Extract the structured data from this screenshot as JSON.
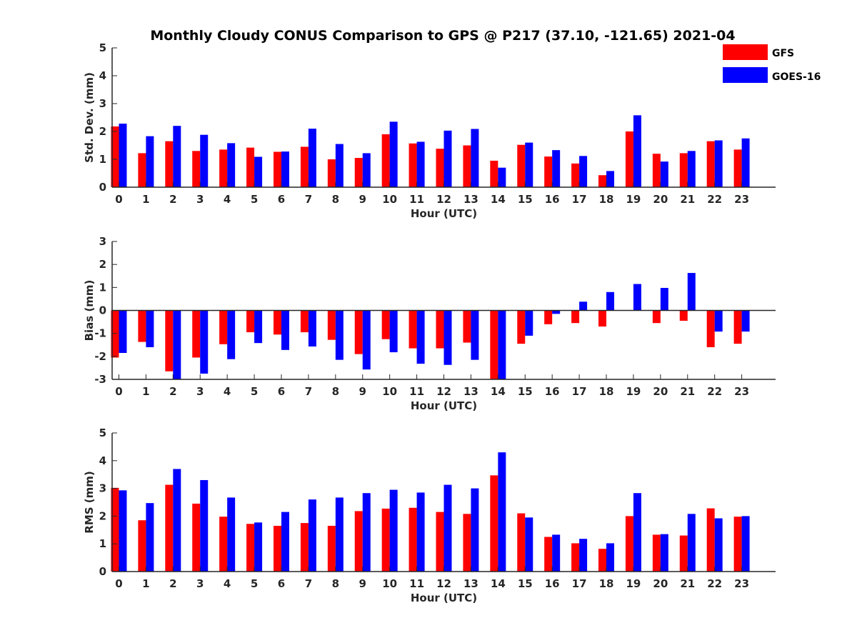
{
  "title": "Monthly Cloudy CONUS Comparison to GPS @ P217 (37.10, -121.65) 2021-04",
  "legend": [
    {
      "name": "GFS",
      "color": "#ff0000"
    },
    {
      "name": "GOES-16",
      "color": "#0000ff"
    }
  ],
  "chart_data": [
    {
      "type": "bar",
      "categories": [
        "0",
        "1",
        "2",
        "3",
        "4",
        "5",
        "6",
        "7",
        "8",
        "9",
        "10",
        "11",
        "12",
        "13",
        "14",
        "15",
        "16",
        "17",
        "18",
        "19",
        "20",
        "21",
        "22",
        "23"
      ],
      "xlabel": "Hour (UTC)",
      "ylabel": "Std. Dev. (mm)",
      "ylim": [
        0,
        5
      ],
      "yticks": [
        0,
        1,
        2,
        3,
        4,
        5
      ],
      "series": [
        {
          "name": "GFS",
          "values": [
            2.18,
            1.22,
            1.65,
            1.3,
            1.35,
            1.42,
            1.27,
            1.45,
            1.0,
            1.05,
            1.9,
            1.57,
            1.38,
            1.5,
            0.95,
            1.52,
            1.1,
            0.85,
            0.43,
            2.0,
            1.2,
            1.22,
            1.65,
            1.35
          ]
        },
        {
          "name": "GOES-16",
          "values": [
            2.28,
            1.83,
            2.2,
            1.88,
            1.58,
            1.09,
            1.28,
            2.1,
            1.55,
            1.22,
            2.35,
            1.63,
            2.03,
            2.09,
            0.7,
            1.6,
            1.33,
            1.12,
            0.58,
            2.58,
            0.92,
            1.3,
            1.68,
            1.75
          ]
        }
      ]
    },
    {
      "type": "bar",
      "categories": [
        "0",
        "1",
        "2",
        "3",
        "4",
        "5",
        "6",
        "7",
        "8",
        "9",
        "10",
        "11",
        "12",
        "13",
        "14",
        "15",
        "16",
        "17",
        "18",
        "19",
        "20",
        "21",
        "22",
        "23"
      ],
      "xlabel": "Hour (UTC)",
      "ylabel": "Bias (mm)",
      "ylim": [
        -3,
        3
      ],
      "yticks": [
        -3,
        -2,
        -1,
        0,
        1,
        2,
        3
      ],
      "series": [
        {
          "name": "GFS",
          "values": [
            -2.05,
            -1.37,
            -2.65,
            -2.05,
            -1.47,
            -0.95,
            -1.05,
            -0.95,
            -1.28,
            -1.9,
            -1.25,
            -1.65,
            -1.65,
            -1.4,
            -3.1,
            -1.45,
            -0.6,
            -0.55,
            -0.7,
            0.0,
            -0.55,
            -0.45,
            -1.6,
            -1.45
          ]
        },
        {
          "name": "GOES-16",
          "values": [
            -1.85,
            -1.6,
            -3.0,
            -2.75,
            -2.12,
            -1.42,
            -1.72,
            -1.57,
            -2.15,
            -2.57,
            -1.82,
            -2.32,
            -2.37,
            -2.15,
            -3.0,
            -1.1,
            -0.15,
            0.38,
            0.8,
            1.15,
            0.98,
            1.63,
            -0.92,
            -0.92
          ]
        }
      ]
    },
    {
      "type": "bar",
      "categories": [
        "0",
        "1",
        "2",
        "3",
        "4",
        "5",
        "6",
        "7",
        "8",
        "9",
        "10",
        "11",
        "12",
        "13",
        "14",
        "15",
        "16",
        "17",
        "18",
        "19",
        "20",
        "21",
        "22",
        "23"
      ],
      "xlabel": "Hour (UTC)",
      "ylabel": "RMS (mm)",
      "ylim": [
        0,
        5
      ],
      "yticks": [
        0,
        1,
        2,
        3,
        4,
        5
      ],
      "series": [
        {
          "name": "GFS",
          "values": [
            3.02,
            1.85,
            3.13,
            2.45,
            1.98,
            1.72,
            1.65,
            1.75,
            1.65,
            2.18,
            2.27,
            2.3,
            2.15,
            2.08,
            3.47,
            2.1,
            1.25,
            1.02,
            0.82,
            2.0,
            1.33,
            1.3,
            2.28,
            1.98
          ]
        },
        {
          "name": "GOES-16",
          "values": [
            2.93,
            2.47,
            3.7,
            3.3,
            2.67,
            1.77,
            2.15,
            2.6,
            2.67,
            2.83,
            2.95,
            2.85,
            3.13,
            3.0,
            4.3,
            1.95,
            1.33,
            1.18,
            1.02,
            2.83,
            1.35,
            2.08,
            1.92,
            2.0
          ]
        }
      ]
    }
  ]
}
